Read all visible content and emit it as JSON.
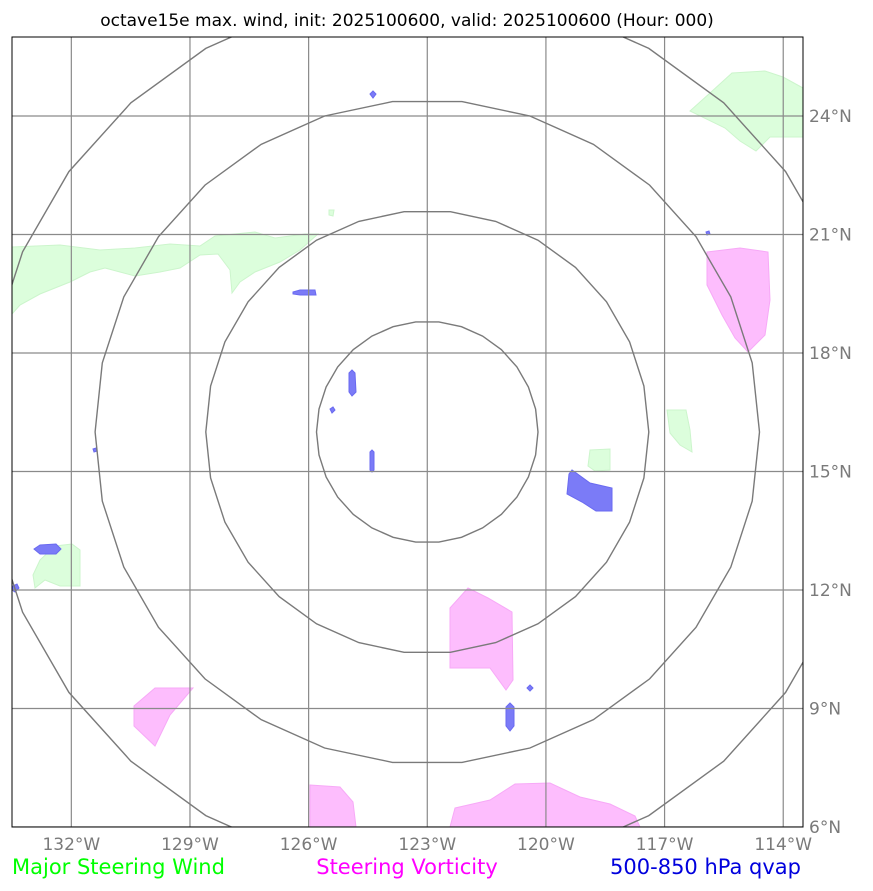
{
  "title": "octave15e max. wind, init: 2025100600, valid: 2025100600 (Hour: 000)",
  "map": {
    "lon_range": [
      -133.5,
      -113.5
    ],
    "lat_range": [
      6,
      26
    ],
    "longitude_ticks": [
      {
        "value": -132,
        "label": "132°W"
      },
      {
        "value": -129,
        "label": "129°W"
      },
      {
        "value": -126,
        "label": "126°W"
      },
      {
        "value": -123,
        "label": "123°W"
      },
      {
        "value": -120,
        "label": "120°W"
      },
      {
        "value": -117,
        "label": "117°W"
      },
      {
        "value": -114,
        "label": "114°W"
      }
    ],
    "latitude_ticks": [
      {
        "value": 6,
        "label": "6°N"
      },
      {
        "value": 9,
        "label": "9°N"
      },
      {
        "value": 12,
        "label": "12°N"
      },
      {
        "value": 15,
        "label": "15°N"
      },
      {
        "value": 18,
        "label": "18°N"
      },
      {
        "value": 21,
        "label": "21°N"
      },
      {
        "value": 24,
        "label": "24°N"
      }
    ],
    "center": {
      "lon": -123,
      "lat": 16
    },
    "range_rings_deg": [
      2.8,
      5.6,
      8.4,
      11.2
    ],
    "colors": {
      "grid": "#8a8a8a",
      "rings": "#7a7a7a",
      "steering_wind": "#dcfedc",
      "vorticity": "#fdbdfd",
      "qvap": "#7b7bf7"
    }
  },
  "legend": {
    "wind": {
      "label": "Major Steering Wind",
      "color": "#00ff00"
    },
    "vorticity": {
      "label": "Steering Vorticity",
      "color": "#ff00ff"
    },
    "qvap": {
      "label": "500-850 hPa qvap",
      "color": "#0000dd"
    }
  }
}
